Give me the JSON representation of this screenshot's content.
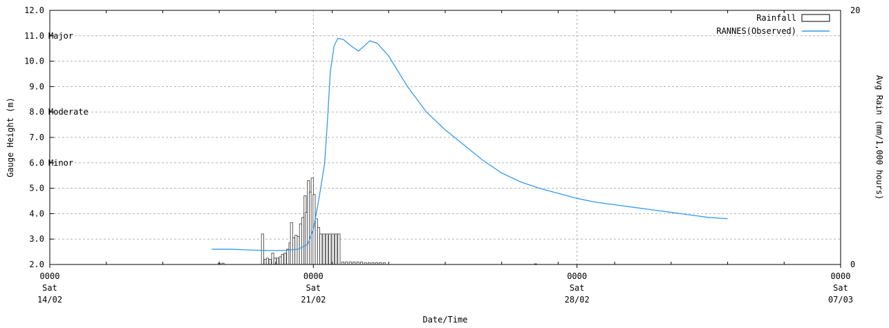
{
  "chart_data": {
    "type": "line",
    "xlabel": "Date/Time",
    "ylabel_left": "Gauge Height (m)",
    "ylabel_right": "Avg Rain (mm/1,000 hours)",
    "x_range": [
      "14/02 00:00",
      "07/03 00:00"
    ],
    "ylim_left": [
      2.0,
      12.0
    ],
    "ylim_right": [
      0,
      20
    ],
    "grid": true,
    "legend_position": "top-right",
    "x_ticks": [
      {
        "time": "0000",
        "day": "Sat",
        "date": "14/02",
        "day_offset": 0
      },
      {
        "time": "0000",
        "day": "Sat",
        "date": "21/02",
        "day_offset": 7
      },
      {
        "time": "0000",
        "day": "Sat",
        "date": "28/02",
        "day_offset": 14
      },
      {
        "time": "0000",
        "day": "Sat",
        "date": "07/03",
        "day_offset": 21
      }
    ],
    "y_ticks_left": [
      "2.0",
      "3.0",
      "4.0",
      "5.0",
      "6.0",
      "7.0",
      "8.0",
      "9.0",
      "10.0",
      "11.0",
      "12.0"
    ],
    "y_ticks_right": [
      "0",
      "20"
    ],
    "thresholds": [
      {
        "label": "Major",
        "value": 11.0
      },
      {
        "label": "Moderate",
        "value": 8.0
      },
      {
        "label": "Minor",
        "value": 6.0
      }
    ],
    "series": [
      {
        "name": "Rainfall",
        "kind": "bar",
        "axis": "right",
        "points": [
          [
            4.5,
            0.1
          ],
          [
            4.6,
            0.1
          ],
          [
            5.65,
            2.4
          ],
          [
            5.72,
            0.4
          ],
          [
            5.78,
            0.5
          ],
          [
            5.85,
            0.4
          ],
          [
            5.92,
            0.9
          ],
          [
            5.98,
            0.5
          ],
          [
            6.05,
            0.5
          ],
          [
            6.12,
            0.6
          ],
          [
            6.18,
            0.8
          ],
          [
            6.25,
            0.9
          ],
          [
            6.32,
            1.2
          ],
          [
            6.38,
            1.7
          ],
          [
            6.42,
            3.3
          ],
          [
            6.48,
            2.1
          ],
          [
            6.54,
            2.3
          ],
          [
            6.6,
            2.2
          ],
          [
            6.66,
            3.2
          ],
          [
            6.72,
            3.7
          ],
          [
            6.78,
            5.4
          ],
          [
            6.82,
            4.1
          ],
          [
            6.87,
            6.6
          ],
          [
            6.92,
            5.7
          ],
          [
            6.97,
            6.8
          ],
          [
            7.02,
            5.5
          ],
          [
            7.08,
            3.6
          ],
          [
            7.14,
            2.9
          ],
          [
            7.2,
            2.4
          ],
          [
            7.28,
            2.4
          ],
          [
            7.36,
            2.4
          ],
          [
            7.44,
            2.4
          ],
          [
            7.52,
            2.4
          ],
          [
            7.6,
            2.4
          ],
          [
            7.68,
            2.4
          ],
          [
            7.78,
            0.2
          ],
          [
            7.88,
            0.2
          ],
          [
            7.98,
            0.2
          ],
          [
            8.08,
            0.2
          ],
          [
            8.18,
            0.2
          ],
          [
            8.28,
            0.2
          ],
          [
            8.38,
            0.15
          ],
          [
            8.48,
            0.15
          ],
          [
            8.58,
            0.15
          ],
          [
            8.68,
            0.15
          ],
          [
            8.78,
            0.15
          ],
          [
            8.88,
            0.15
          ],
          [
            12.9,
            0.05
          ]
        ]
      },
      {
        "name": "RANNES(Observed)",
        "kind": "line",
        "axis": "left",
        "color": "#3399ee",
        "points": [
          [
            4.3,
            2.6
          ],
          [
            4.8,
            2.6
          ],
          [
            5.3,
            2.57
          ],
          [
            5.8,
            2.55
          ],
          [
            6.2,
            2.55
          ],
          [
            6.6,
            2.6
          ],
          [
            6.85,
            2.8
          ],
          [
            7.0,
            3.4
          ],
          [
            7.15,
            4.6
          ],
          [
            7.3,
            6.0
          ],
          [
            7.38,
            7.8
          ],
          [
            7.45,
            9.6
          ],
          [
            7.55,
            10.6
          ],
          [
            7.65,
            10.9
          ],
          [
            7.8,
            10.85
          ],
          [
            8.0,
            10.6
          ],
          [
            8.2,
            10.4
          ],
          [
            8.35,
            10.6
          ],
          [
            8.5,
            10.8
          ],
          [
            8.7,
            10.7
          ],
          [
            9.0,
            10.2
          ],
          [
            9.5,
            9.0
          ],
          [
            10.0,
            8.0
          ],
          [
            10.5,
            7.3
          ],
          [
            11.0,
            6.7
          ],
          [
            11.5,
            6.1
          ],
          [
            12.0,
            5.6
          ],
          [
            12.5,
            5.25
          ],
          [
            13.0,
            5.0
          ],
          [
            13.5,
            4.8
          ],
          [
            14.0,
            4.6
          ],
          [
            14.5,
            4.45
          ],
          [
            15.0,
            4.35
          ],
          [
            15.5,
            4.25
          ],
          [
            16.0,
            4.15
          ],
          [
            16.5,
            4.05
          ],
          [
            17.0,
            3.95
          ],
          [
            17.5,
            3.85
          ],
          [
            18.0,
            3.8
          ]
        ]
      }
    ]
  }
}
